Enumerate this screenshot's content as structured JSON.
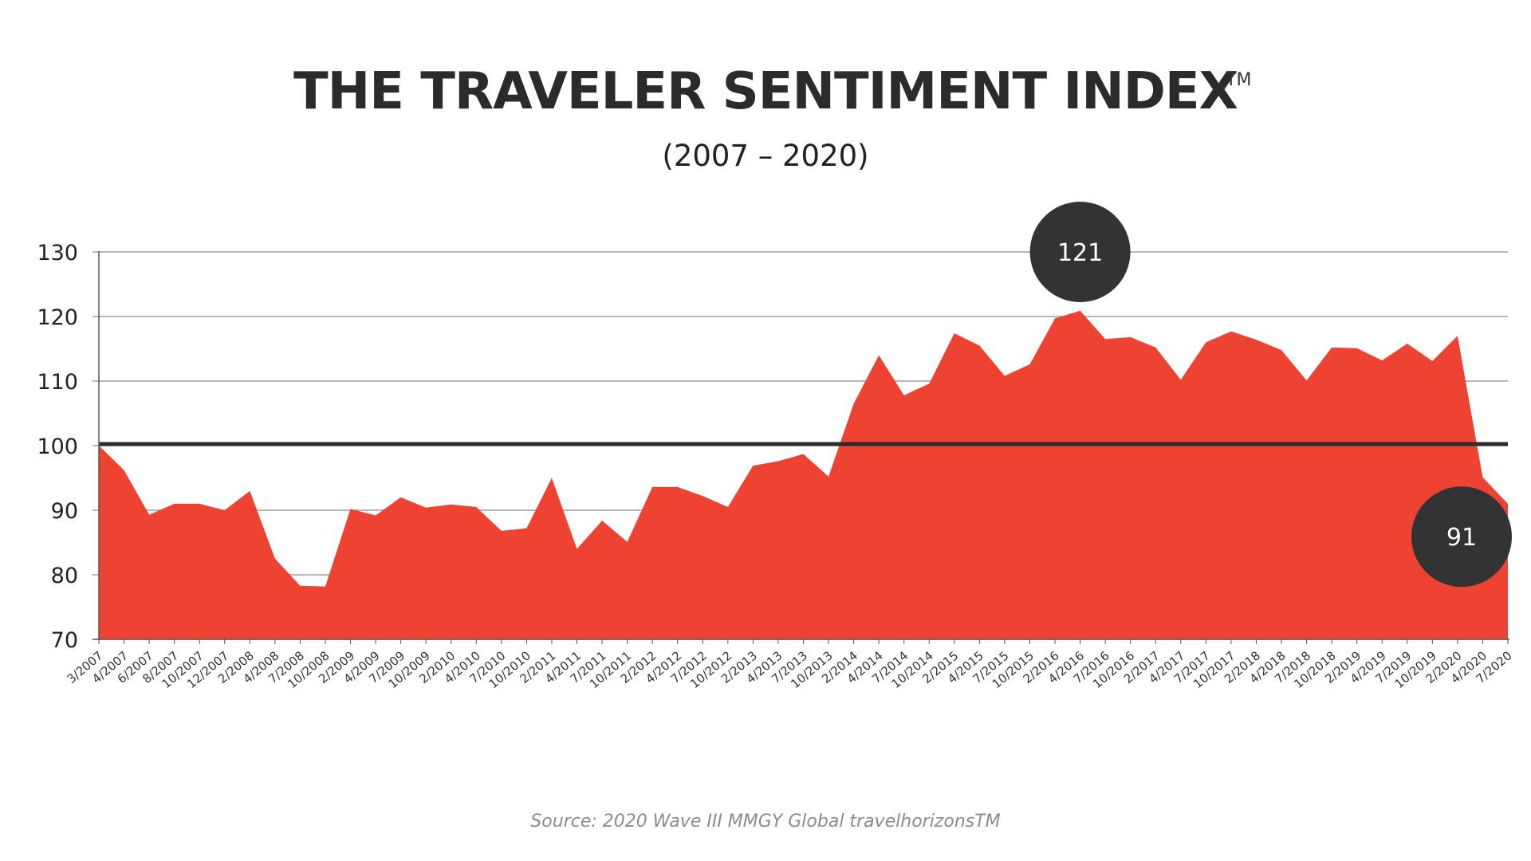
{
  "header": {
    "title": "THE TRAVELER SENTIMENT INDEX",
    "tm": "TM",
    "subtitle": "(2007 – 2020)"
  },
  "footer": {
    "source": "Source: 2020 Wave III MMGY Global travelhorizonsTM"
  },
  "colors": {
    "area_fill": "#ee4333",
    "grid": "#8c8c8c",
    "axis": "#555555",
    "baseline": "#2b2b2b",
    "callout": "#333333",
    "callout_text": "#ffffff"
  },
  "chart_data": {
    "type": "area",
    "title": "THE TRAVELER SENTIMENT INDEX",
    "subtitle": "(2007 – 2020)",
    "xlabel": "",
    "ylabel": "",
    "ylim": [
      70,
      130
    ],
    "yticks": [
      130,
      120,
      110,
      100,
      90,
      80,
      70
    ],
    "grid": true,
    "legend": "none",
    "reference_line": 100,
    "categories": [
      "3/2007",
      "4/2007",
      "6/2007",
      "8/2007",
      "10/2007",
      "12/2007",
      "2/2008",
      "4/2008",
      "7/2008",
      "10/2008",
      "2/2009",
      "4/2009",
      "7/2009",
      "10/2009",
      "2/2010",
      "4/2010",
      "7/2010",
      "10/2010",
      "2/2011",
      "4/2011",
      "7/2011",
      "10/2011",
      "2/2012",
      "4/2012",
      "7/2012",
      "10/2012",
      "2/2013",
      "4/2013",
      "7/2013",
      "10/2013",
      "2/2014",
      "4/2014",
      "7/2014",
      "10/2014",
      "2/2015",
      "4/2015",
      "7/2015",
      "10/2015",
      "2/2016",
      "4/2016",
      "7/2016",
      "10/2016",
      "2/2017",
      "4/2017",
      "7/2017",
      "10/2017",
      "2/2018",
      "4/2018",
      "7/2018",
      "10/2018",
      "2/2019",
      "4/2019",
      "7/2019",
      "10/2019",
      "2/2020",
      "4/2020",
      "7/2020"
    ],
    "values": [
      100,
      96.2,
      89.3,
      91.0,
      91.0,
      90.0,
      93.0,
      82.5,
      78.3,
      78.2,
      90.2,
      89.2,
      92.0,
      90.4,
      90.9,
      90.5,
      86.8,
      87.2,
      95.0,
      84.0,
      88.4,
      85.1,
      93.6,
      93.6,
      92.2,
      90.5,
      96.9,
      97.6,
      98.7,
      95.2,
      106.5,
      114.0,
      107.8,
      109.6,
      117.4,
      115.5,
      110.8,
      112.6,
      119.7,
      120.9,
      116.5,
      116.8,
      115.2,
      110.2,
      116.0,
      117.7,
      116.4,
      114.8,
      110.1,
      115.2,
      115.1,
      113.2,
      115.8,
      113.1,
      117.0,
      95.1,
      91.0
    ],
    "callouts": [
      {
        "label": "121",
        "category": "4/2016",
        "value": 130
      },
      {
        "label": "91",
        "category": "7/2020",
        "value": 85.9
      }
    ]
  }
}
